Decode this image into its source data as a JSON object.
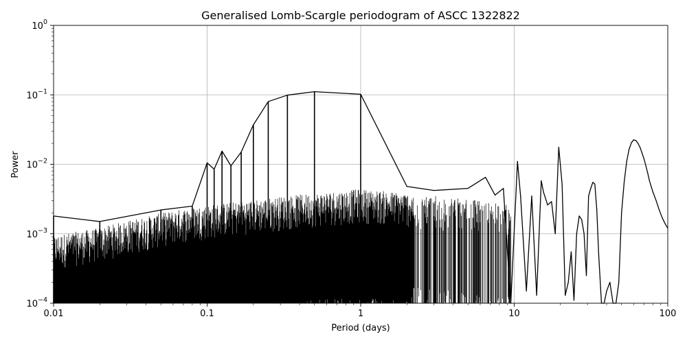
{
  "chart_data": {
    "type": "line",
    "title": "Generalised Lomb-Scargle periodogram of ASCC 1322822",
    "xlabel": "Period (days)",
    "ylabel": "Power",
    "xscale": "log",
    "yscale": "log",
    "xlim": [
      0.01,
      100
    ],
    "ylim": [
      0.0001,
      1
    ],
    "grid": true,
    "line_color": "#000000",
    "x_ticks": [
      {
        "value": 0.01,
        "label": "0.01"
      },
      {
        "value": 0.1,
        "label": "0.1"
      },
      {
        "value": 1,
        "label": "1"
      },
      {
        "value": 10,
        "label": "10"
      },
      {
        "value": 100,
        "label": "100"
      }
    ],
    "y_ticks": [
      {
        "value": 0.0001,
        "base": "10",
        "exp": "−4"
      },
      {
        "value": 0.001,
        "base": "10",
        "exp": "−3"
      },
      {
        "value": 0.01,
        "base": "10",
        "exp": "−2"
      },
      {
        "value": 0.1,
        "base": "10",
        "exp": "−1"
      },
      {
        "value": 1,
        "base": "10",
        "exp": "0"
      }
    ],
    "series": [
      {
        "x": [
          0.01,
          0.02,
          0.05,
          0.08,
          0.1,
          0.1111,
          0.125,
          0.1429,
          0.1667,
          0.2,
          0.25,
          0.3333,
          0.5,
          1.0,
          2.0,
          3.0,
          5.0,
          6.5,
          7.5,
          8.5,
          9.5,
          10.5,
          11.0,
          12.0,
          13.0,
          14.0,
          15.0,
          15.5,
          16.5,
          17.5,
          18.5,
          19.5,
          20.5,
          21.5,
          22.5,
          23.5,
          24.5,
          25.5,
          26.5,
          27.5,
          28.5,
          29.5,
          30.5,
          31.5,
          32.5,
          33.5,
          34.5,
          35.5,
          37.0,
          38.5,
          40.0,
          42.0,
          44.0,
          46.0,
          48.0,
          50.0,
          52.0,
          54.0,
          56.0,
          58.0,
          60.0,
          62.0,
          64.0,
          66.0,
          68.0,
          70.0,
          72.0,
          74.0,
          76.0,
          78.0,
          80.0,
          84.0,
          88.0,
          92.0,
          96.0,
          100.0
        ],
        "y": [
          0.0018,
          0.0015,
          0.0022,
          0.0025,
          0.0105,
          0.0085,
          0.0155,
          0.0095,
          0.015,
          0.037,
          0.08,
          0.099,
          0.111,
          0.102,
          0.0048,
          0.0042,
          0.0045,
          0.0065,
          0.0036,
          0.0045,
          0.0001,
          0.011,
          0.0035,
          0.00015,
          0.0035,
          0.00013,
          0.0058,
          0.004,
          0.0026,
          0.0029,
          0.001,
          0.0176,
          0.0052,
          0.00013,
          0.0002,
          0.00055,
          0.00011,
          0.001,
          0.0018,
          0.0016,
          0.001,
          0.00025,
          0.0035,
          0.0045,
          0.0055,
          0.0052,
          0.0022,
          0.0005,
          0.0001,
          0.0001,
          0.00015,
          0.0002,
          0.0001,
          0.0001,
          0.0002,
          0.002,
          0.0055,
          0.011,
          0.0165,
          0.0205,
          0.0225,
          0.022,
          0.02,
          0.0175,
          0.0145,
          0.012,
          0.0095,
          0.0075,
          0.0058,
          0.0048,
          0.004,
          0.003,
          0.0022,
          0.0017,
          0.0014,
          0.0012
        ]
      }
    ]
  }
}
